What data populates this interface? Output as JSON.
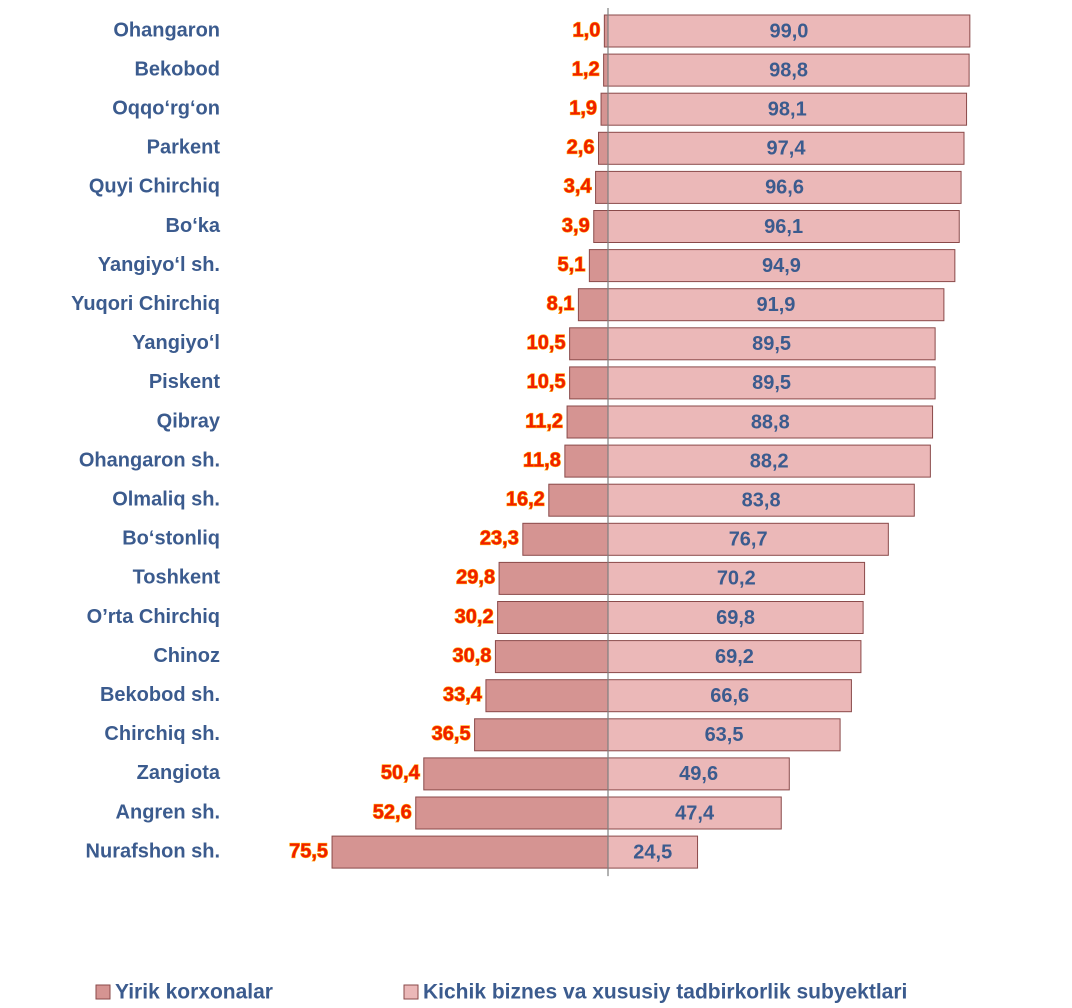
{
  "chart_data": {
    "type": "diverging-bar",
    "categories": [
      "Ohangaron",
      "Bekobod",
      "Oqqo‘rg‘on",
      "Parkent",
      "Quyi Chirchiq",
      "Bo‘ka",
      "Yangiyo‘l sh.",
      "Yuqori Chirchiq",
      "Yangiyo‘l",
      "Piskent",
      "Qibray",
      "Ohangaron sh.",
      "Olmaliq sh.",
      "Bo‘stonliq",
      "Toshkent",
      "O’rta Chirchiq",
      "Chinoz",
      "Bekobod sh.",
      "Chirchiq sh.",
      "Zangiota",
      "Angren sh.",
      "Nurafshon sh."
    ],
    "series": [
      {
        "name": "Yirik korxonalar",
        "color": "#d59492",
        "values": [
          1.0,
          1.2,
          1.9,
          2.6,
          3.4,
          3.9,
          5.1,
          8.1,
          10.5,
          10.5,
          11.2,
          11.8,
          16.2,
          23.3,
          29.8,
          30.2,
          30.8,
          33.4,
          36.5,
          50.4,
          52.6,
          75.5
        ],
        "value_labels": [
          "1,0",
          "1,2",
          "1,9",
          "2,6",
          "3,4",
          "3,9",
          "5,1",
          "8,1",
          "10,5",
          "10,5",
          "11,2",
          "11,8",
          "16,2",
          "23,3",
          "29,8",
          "30,2",
          "30,8",
          "33,4",
          "36,5",
          "50,4",
          "52,6",
          "75,5"
        ]
      },
      {
        "name": "Kichik biznes va xususiy tadbirkorlik subyektlari",
        "color": "#ebb8b8",
        "values": [
          99.0,
          98.8,
          98.1,
          97.4,
          96.6,
          96.1,
          94.9,
          91.9,
          89.5,
          89.5,
          88.8,
          88.2,
          83.8,
          76.7,
          70.2,
          69.8,
          69.2,
          66.6,
          63.5,
          49.6,
          47.4,
          24.5
        ],
        "value_labels": [
          "99,0",
          "98,8",
          "98,1",
          "97,4",
          "96,6",
          "96,1",
          "94,9",
          "91,9",
          "89,5",
          "89,5",
          "88,8",
          "88,2",
          "83,8",
          "76,7",
          "70,2",
          "69,8",
          "69,2",
          "66,6",
          "63,5",
          "49,6",
          "47,4",
          "24,5"
        ]
      }
    ]
  }
}
